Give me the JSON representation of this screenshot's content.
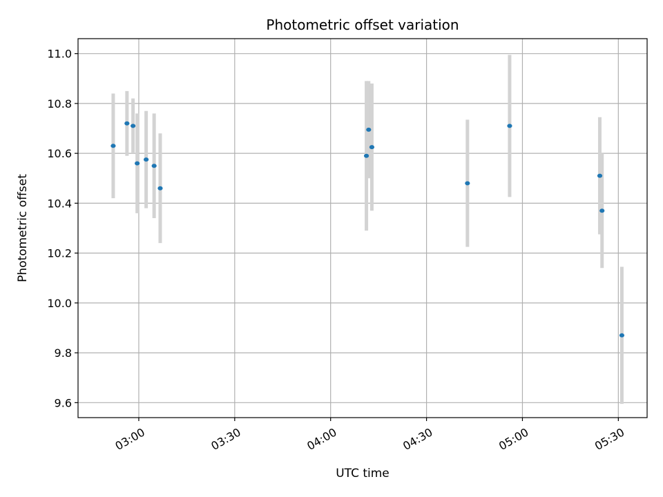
{
  "chart_data": {
    "type": "scatter",
    "title": "Photometric offset variation",
    "xlabel": "UTC time",
    "ylabel": "Photometric offset",
    "x_unit": "time (HH:MM UTC)",
    "xlim": [
      "02:41",
      "05:39"
    ],
    "ylim": [
      9.54,
      11.06
    ],
    "xticks": [
      "03:00",
      "03:30",
      "04:00",
      "04:30",
      "05:00",
      "05:30"
    ],
    "yticks": [
      9.6,
      9.8,
      10.0,
      10.2,
      10.4,
      10.6,
      10.8,
      11.0
    ],
    "grid": true,
    "marker_color": "#1f77b4",
    "errorbar_color": "#d3d3d3",
    "series": [
      {
        "points": [
          {
            "x": "02:52:00",
            "y": 10.63,
            "err": 0.21
          },
          {
            "x": "02:56:18",
            "y": 10.72,
            "err": 0.13
          },
          {
            "x": "02:58:12",
            "y": 10.71,
            "err": 0.11
          },
          {
            "x": "02:59:30",
            "y": 10.56,
            "err": 0.2
          },
          {
            "x": "03:02:18",
            "y": 10.575,
            "err": 0.195
          },
          {
            "x": "03:04:48",
            "y": 10.55,
            "err": 0.21
          },
          {
            "x": "03:06:42",
            "y": 10.46,
            "err": 0.22
          },
          {
            "x": "04:11:12",
            "y": 10.59,
            "err": 0.3
          },
          {
            "x": "04:11:54",
            "y": 10.695,
            "err": 0.195
          },
          {
            "x": "04:12:54",
            "y": 10.625,
            "err": 0.255
          },
          {
            "x": "04:42:48",
            "y": 10.48,
            "err": 0.255
          },
          {
            "x": "04:56:00",
            "y": 10.71,
            "err": 0.285
          },
          {
            "x": "05:24:12",
            "y": 10.51,
            "err": 0.235
          },
          {
            "x": "05:24:54",
            "y": 10.37,
            "err": 0.23
          },
          {
            "x": "05:31:06",
            "y": 9.87,
            "err": 0.275
          }
        ]
      }
    ]
  }
}
